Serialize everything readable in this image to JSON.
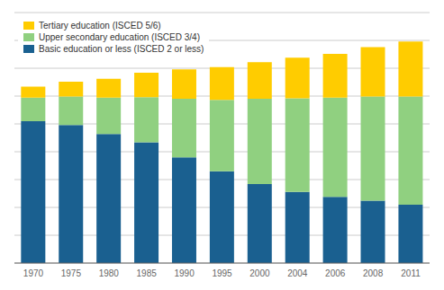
{
  "chart_data": {
    "type": "bar",
    "stacked": true,
    "categories": [
      "1970",
      "1975",
      "1980",
      "1985",
      "1990",
      "1995",
      "2000",
      "2004",
      "2006",
      "2008",
      "2011"
    ],
    "series": [
      {
        "name": "Basic education or less (ISCED 2 or less)",
        "color": "#1A6090",
        "values": [
          2550,
          2480,
          2320,
          2170,
          1900,
          1650,
          1420,
          1280,
          1190,
          1120,
          1050
        ]
      },
      {
        "name": "Upper secondary education (ISCED 3/4)",
        "color": "#90D080",
        "values": [
          420,
          510,
          650,
          810,
          1050,
          1280,
          1530,
          1680,
          1780,
          1870,
          1940
        ]
      },
      {
        "name": "Tertiary education (ISCED 5/6)",
        "color": "#FFCC00",
        "values": [
          200,
          270,
          340,
          440,
          530,
          590,
          660,
          730,
          790,
          890,
          990
        ]
      }
    ],
    "ylim": [
      0,
      4500
    ],
    "yticks": [
      0,
      500,
      1000,
      1500,
      2000,
      2500,
      3000,
      3500,
      4000,
      4500
    ],
    "grid": true,
    "legend": "upper left",
    "tick_labels": "x"
  }
}
